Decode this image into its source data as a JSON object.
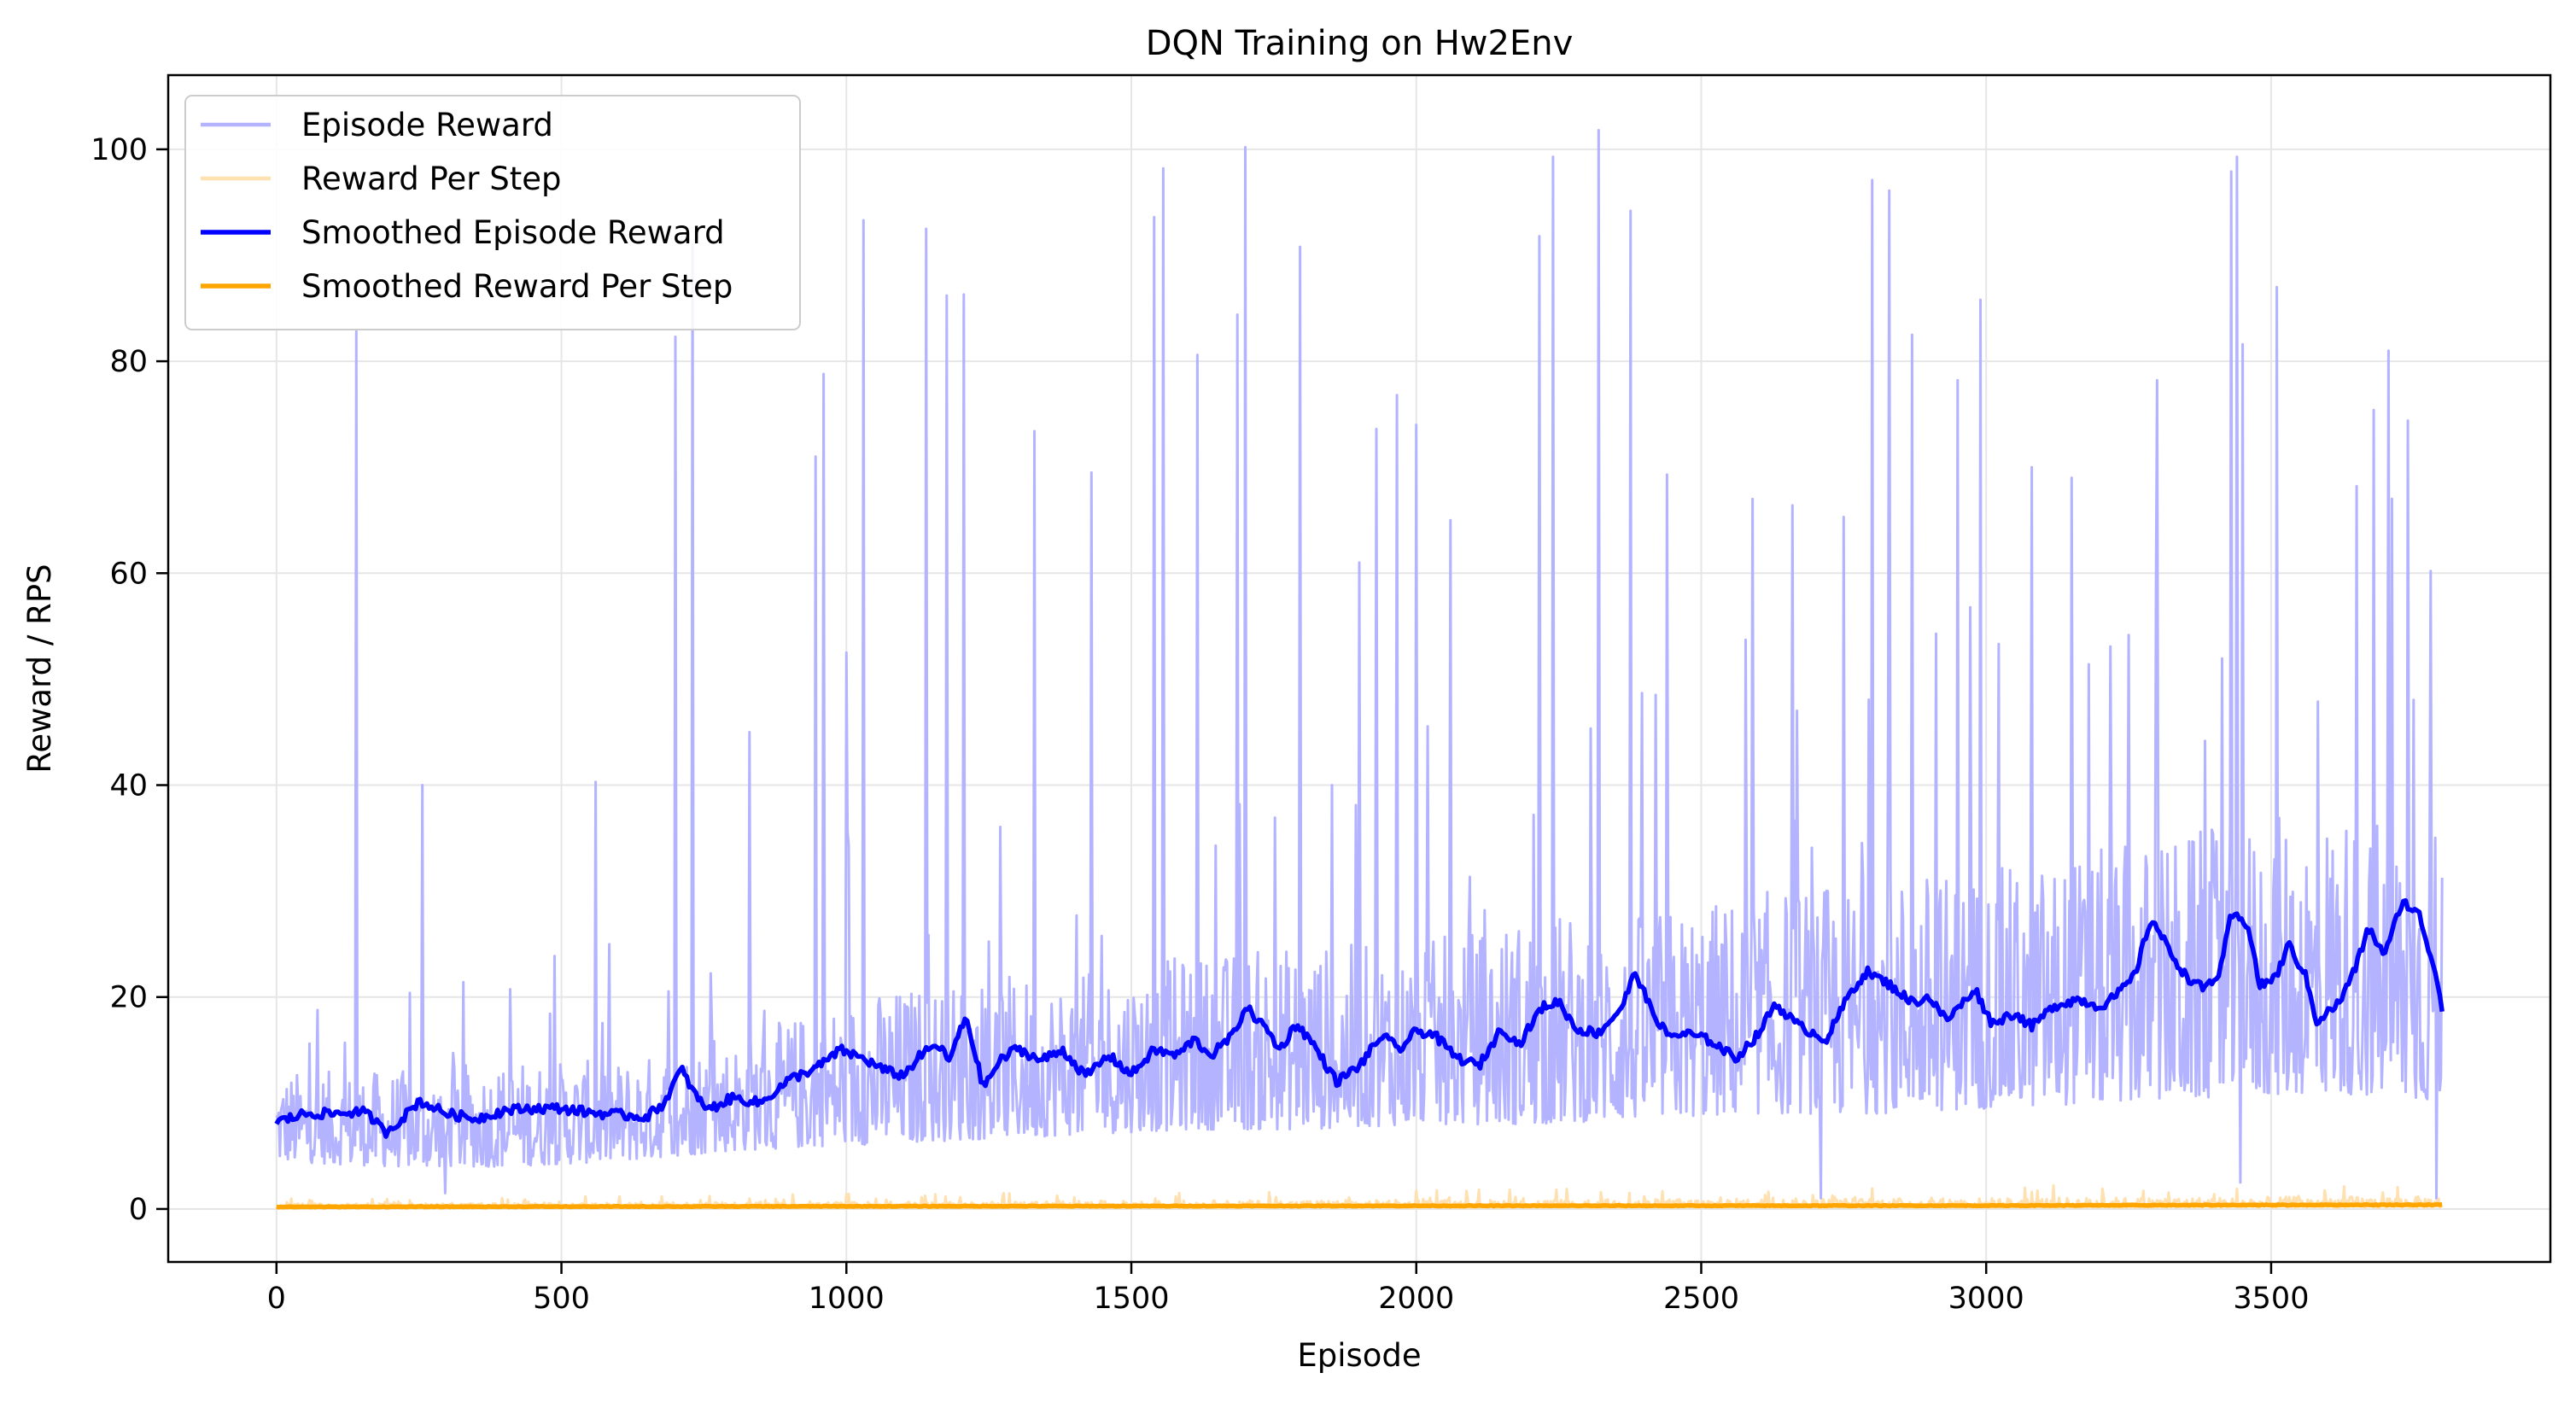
{
  "chart_data": {
    "type": "line",
    "title": "DQN Training on Hw2Env",
    "xlabel": "Episode",
    "ylabel": "Reward / RPS",
    "xlim": [
      -190,
      3990
    ],
    "ylim": [
      -5,
      107
    ],
    "x_ticks": [
      0,
      500,
      1000,
      1500,
      2000,
      2500,
      3000,
      3500
    ],
    "y_ticks": [
      0,
      20,
      40,
      60,
      80,
      100
    ],
    "grid": true,
    "legend_position": "upper-left",
    "colors": {
      "episode_reward": "#b3b3ff",
      "reward_per_step": "#ffe0b0",
      "smoothed_episode_reward": "#0000ff",
      "smoothed_reward_per_step": "#ffa500",
      "grid": "#e6e6e6"
    },
    "series": [
      {
        "name": "Episode Reward",
        "style": "raw",
        "color": "#b3b3ff",
        "x_range": [
          0,
          3800
        ],
        "band_low": [
          [
            0,
            4.5
          ],
          [
            200,
            4
          ],
          [
            400,
            4
          ],
          [
            600,
            4.5
          ],
          [
            800,
            5.5
          ],
          [
            1000,
            6
          ],
          [
            1200,
            6.5
          ],
          [
            1400,
            7
          ],
          [
            1600,
            7.5
          ],
          [
            1800,
            7.5
          ],
          [
            2000,
            8
          ],
          [
            2200,
            8
          ],
          [
            2400,
            8.5
          ],
          [
            2600,
            9
          ],
          [
            2800,
            9
          ],
          [
            3000,
            9.5
          ],
          [
            3200,
            10
          ],
          [
            3400,
            10.5
          ],
          [
            3600,
            11
          ],
          [
            3800,
            10
          ]
        ],
        "band_high": [
          [
            0,
            13
          ],
          [
            200,
            13
          ],
          [
            400,
            14
          ],
          [
            600,
            14
          ],
          [
            800,
            16
          ],
          [
            1000,
            20
          ],
          [
            1200,
            22
          ],
          [
            1400,
            22
          ],
          [
            1600,
            24
          ],
          [
            1800,
            25
          ],
          [
            2000,
            25
          ],
          [
            2200,
            28
          ],
          [
            2400,
            28
          ],
          [
            2600,
            30
          ],
          [
            2800,
            32
          ],
          [
            3000,
            32
          ],
          [
            3200,
            34
          ],
          [
            3400,
            36
          ],
          [
            3600,
            38
          ],
          [
            3800,
            36
          ]
        ],
        "spikes": [
          [
            140,
            82.8
          ],
          [
            255,
            40
          ],
          [
            560,
            40.3
          ],
          [
            700,
            82.3
          ],
          [
            730,
            91
          ],
          [
            830,
            45
          ],
          [
            945,
            71
          ],
          [
            960,
            78.8
          ],
          [
            1000,
            52.5
          ],
          [
            1030,
            93.3
          ],
          [
            1140,
            92.5
          ],
          [
            1175,
            86.2
          ],
          [
            1205,
            86.3
          ],
          [
            1330,
            73.4
          ],
          [
            1430,
            69.5
          ],
          [
            1540,
            93.6
          ],
          [
            1555,
            98.2
          ],
          [
            1615,
            80.6
          ],
          [
            1685,
            84.4
          ],
          [
            1700,
            100.2
          ],
          [
            1795,
            90.8
          ],
          [
            1900,
            61
          ],
          [
            1930,
            73.6
          ],
          [
            1965,
            76.8
          ],
          [
            2000,
            74
          ],
          [
            2060,
            65
          ],
          [
            2215,
            91.8
          ],
          [
            2240,
            99.3
          ],
          [
            2320,
            101.8
          ],
          [
            2375,
            94.2
          ],
          [
            2440,
            69.3
          ],
          [
            2590,
            67
          ],
          [
            2660,
            66.4
          ],
          [
            2750,
            65.3
          ],
          [
            2800,
            97.1
          ],
          [
            2830,
            96.1
          ],
          [
            2870,
            82.5
          ],
          [
            2950,
            78.2
          ],
          [
            2990,
            85.8
          ],
          [
            3080,
            70
          ],
          [
            3150,
            69
          ],
          [
            3300,
            78.2
          ],
          [
            3430,
            97.9
          ],
          [
            3440,
            99.3
          ],
          [
            3450,
            81.6
          ],
          [
            3510,
            87
          ],
          [
            3650,
            68.2
          ],
          [
            3680,
            75.4
          ],
          [
            3705,
            81
          ],
          [
            3740,
            74.4
          ],
          [
            3780,
            60.2
          ],
          [
            2710,
            1
          ],
          [
            3445,
            2.5
          ],
          [
            295,
            1.5
          ],
          [
            3790,
            1
          ]
        ]
      },
      {
        "name": "Reward Per Step",
        "style": "raw",
        "color": "#ffe0b0",
        "x_range": [
          0,
          3800
        ],
        "band_low": [
          [
            0,
            0.05
          ],
          [
            3800,
            0.1
          ]
        ],
        "band_high": [
          [
            0,
            0.5
          ],
          [
            3800,
            1.2
          ]
        ],
        "spikes": [
          [
            1200,
            1.1
          ],
          [
            2400,
            1.2
          ],
          [
            3400,
            1.4
          ]
        ]
      },
      {
        "name": "Smoothed Episode Reward",
        "style": "smoothed",
        "color": "#0000ff",
        "points": [
          [
            0,
            8.2
          ],
          [
            50,
            9
          ],
          [
            100,
            9
          ],
          [
            150,
            9.2
          ],
          [
            170,
            8.5
          ],
          [
            190,
            7.2
          ],
          [
            220,
            8.5
          ],
          [
            250,
            10.2
          ],
          [
            300,
            9
          ],
          [
            350,
            8.5
          ],
          [
            400,
            9.3
          ],
          [
            450,
            9.5
          ],
          [
            500,
            9.5
          ],
          [
            550,
            9.1
          ],
          [
            600,
            8.9
          ],
          [
            650,
            8.7
          ],
          [
            680,
            10
          ],
          [
            710,
            13.2
          ],
          [
            740,
            10.3
          ],
          [
            760,
            9.4
          ],
          [
            800,
            10.5
          ],
          [
            850,
            10
          ],
          [
            900,
            12.2
          ],
          [
            950,
            13.4
          ],
          [
            990,
            15
          ],
          [
            1030,
            14.2
          ],
          [
            1070,
            13
          ],
          [
            1100,
            12.6
          ],
          [
            1130,
            14.5
          ],
          [
            1160,
            15.5
          ],
          [
            1180,
            14
          ],
          [
            1210,
            18.2
          ],
          [
            1240,
            11.5
          ],
          [
            1270,
            14
          ],
          [
            1300,
            15.2
          ],
          [
            1340,
            14
          ],
          [
            1380,
            15
          ],
          [
            1420,
            12.5
          ],
          [
            1460,
            14.5
          ],
          [
            1500,
            12.7
          ],
          [
            1540,
            15
          ],
          [
            1580,
            14.5
          ],
          [
            1610,
            16
          ],
          [
            1640,
            14.5
          ],
          [
            1680,
            16.5
          ],
          [
            1700,
            19.1
          ],
          [
            1740,
            16.8
          ],
          [
            1760,
            15
          ],
          [
            1790,
            17.5
          ],
          [
            1820,
            15.5
          ],
          [
            1860,
            12
          ],
          [
            1900,
            13.5
          ],
          [
            1940,
            16.4
          ],
          [
            1970,
            15
          ],
          [
            2000,
            16.8
          ],
          [
            2030,
            16.5
          ],
          [
            2070,
            14.3
          ],
          [
            2110,
            13.5
          ],
          [
            2150,
            17.1
          ],
          [
            2180,
            15.5
          ],
          [
            2220,
            19
          ],
          [
            2250,
            19.6
          ],
          [
            2280,
            17
          ],
          [
            2320,
            16.6
          ],
          [
            2360,
            19
          ],
          [
            2385,
            22.4
          ],
          [
            2410,
            19
          ],
          [
            2440,
            16.4
          ],
          [
            2480,
            16.5
          ],
          [
            2520,
            15.8
          ],
          [
            2560,
            14.2
          ],
          [
            2600,
            16.5
          ],
          [
            2630,
            19.4
          ],
          [
            2670,
            17.3
          ],
          [
            2720,
            16
          ],
          [
            2760,
            20.3
          ],
          [
            2790,
            22.4
          ],
          [
            2830,
            21.2
          ],
          [
            2870,
            19.5
          ],
          [
            2900,
            20
          ],
          [
            2930,
            17.8
          ],
          [
            2960,
            19.5
          ],
          [
            2980,
            20.8
          ],
          [
            3010,
            17.5
          ],
          [
            3050,
            18.5
          ],
          [
            3080,
            17.2
          ],
          [
            3120,
            19.2
          ],
          [
            3160,
            19.8
          ],
          [
            3200,
            19.1
          ],
          [
            3230,
            20.2
          ],
          [
            3260,
            22
          ],
          [
            3290,
            27.5
          ],
          [
            3320,
            24.5
          ],
          [
            3350,
            22
          ],
          [
            3380,
            20.8
          ],
          [
            3410,
            22.2
          ],
          [
            3430,
            27.8
          ],
          [
            3460,
            26.8
          ],
          [
            3480,
            21
          ],
          [
            3510,
            22
          ],
          [
            3530,
            25
          ],
          [
            3560,
            22
          ],
          [
            3580,
            17.7
          ],
          [
            3620,
            19.5
          ],
          [
            3650,
            23
          ],
          [
            3670,
            26.5
          ],
          [
            3700,
            24
          ],
          [
            3730,
            29.1
          ],
          [
            3760,
            27.7
          ],
          [
            3790,
            22
          ],
          [
            3800,
            19
          ]
        ]
      },
      {
        "name": "Smoothed Reward Per Step",
        "style": "smoothed",
        "color": "#ffa500",
        "points": [
          [
            0,
            0.2
          ],
          [
            1000,
            0.25
          ],
          [
            2000,
            0.3
          ],
          [
            3000,
            0.32
          ],
          [
            3500,
            0.38
          ],
          [
            3800,
            0.4
          ]
        ]
      }
    ]
  }
}
